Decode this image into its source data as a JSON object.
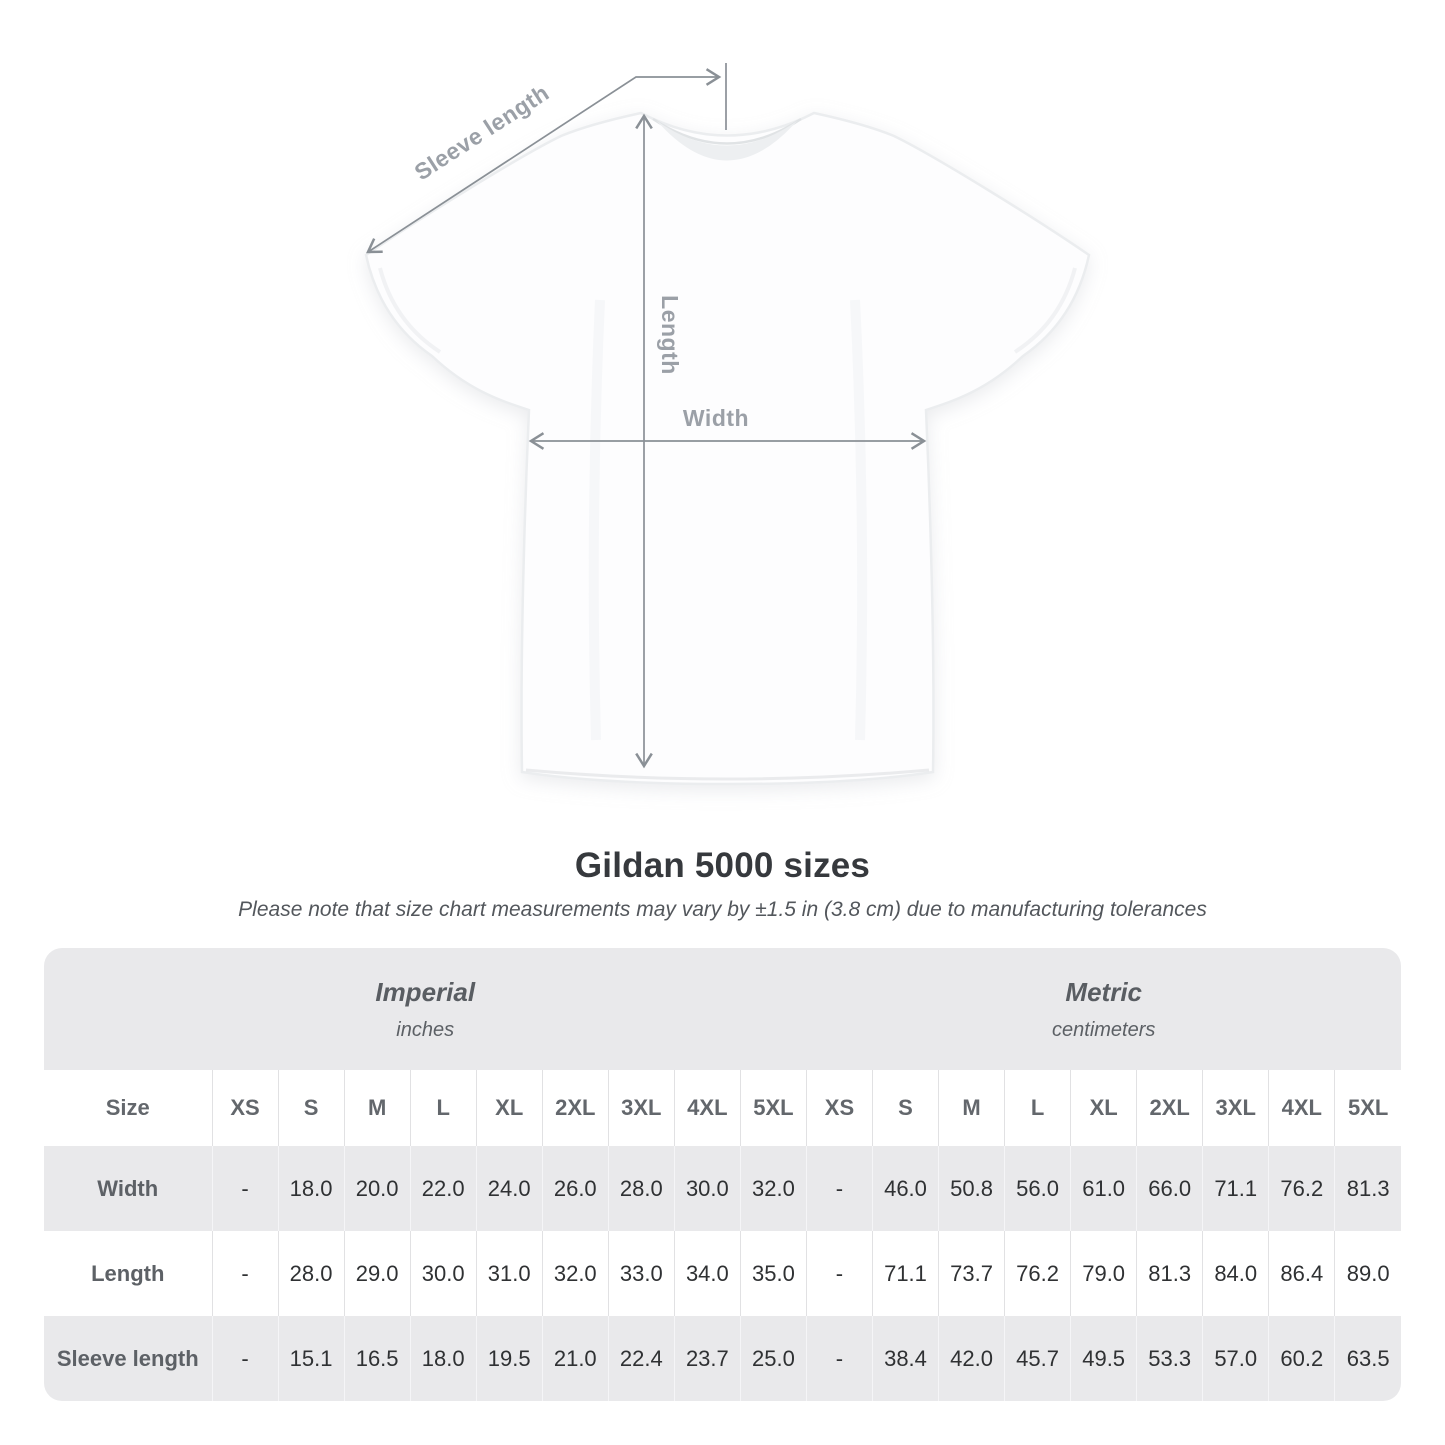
{
  "diagram": {
    "labels": {
      "sleeve_length": "Sleeve length",
      "length": "Length",
      "width": "Width"
    },
    "colors": {
      "arrow": "#8a9096",
      "label": "#9ba0a7",
      "shirt_fill": "#fdfdfe",
      "shirt_outline": "#ebedef"
    }
  },
  "heading": {
    "title": "Gildan 5000 sizes",
    "subtitle": "Please note that size chart measurements may vary by ±1.5 in (3.8 cm) due to manufacturing tolerances"
  },
  "size_table": {
    "unit_groups": [
      {
        "name": "Imperial",
        "unit": "inches"
      },
      {
        "name": "Metric",
        "unit": "centimeters"
      }
    ],
    "size_col_header": "Size",
    "sizes": [
      "XS",
      "S",
      "M",
      "L",
      "XL",
      "2XL",
      "3XL",
      "4XL",
      "5XL"
    ],
    "rows": [
      {
        "label": "Width",
        "imperial": [
          "-",
          "18.0",
          "20.0",
          "22.0",
          "24.0",
          "26.0",
          "28.0",
          "30.0",
          "32.0"
        ],
        "metric": [
          "-",
          "46.0",
          "50.8",
          "56.0",
          "61.0",
          "66.0",
          "71.1",
          "76.2",
          "81.3"
        ]
      },
      {
        "label": "Length",
        "imperial": [
          "-",
          "28.0",
          "29.0",
          "30.0",
          "31.0",
          "32.0",
          "33.0",
          "34.0",
          "35.0"
        ],
        "metric": [
          "-",
          "71.1",
          "73.7",
          "76.2",
          "79.0",
          "81.3",
          "84.0",
          "86.4",
          "89.0"
        ]
      },
      {
        "label": "Sleeve length",
        "imperial": [
          "-",
          "15.1",
          "16.5",
          "18.0",
          "19.5",
          "21.0",
          "22.4",
          "23.7",
          "25.0"
        ],
        "metric": [
          "-",
          "38.4",
          "42.0",
          "45.7",
          "49.5",
          "53.3",
          "57.0",
          "60.2",
          "63.5"
        ]
      }
    ],
    "colors": {
      "band_bg": "#e9e9eb",
      "alt_row_bg": "#e9e9eb",
      "row_bg": "#ffffff",
      "border": "#e1e1e3",
      "header_text": "#63676c",
      "value_text": "#2f3133"
    }
  }
}
